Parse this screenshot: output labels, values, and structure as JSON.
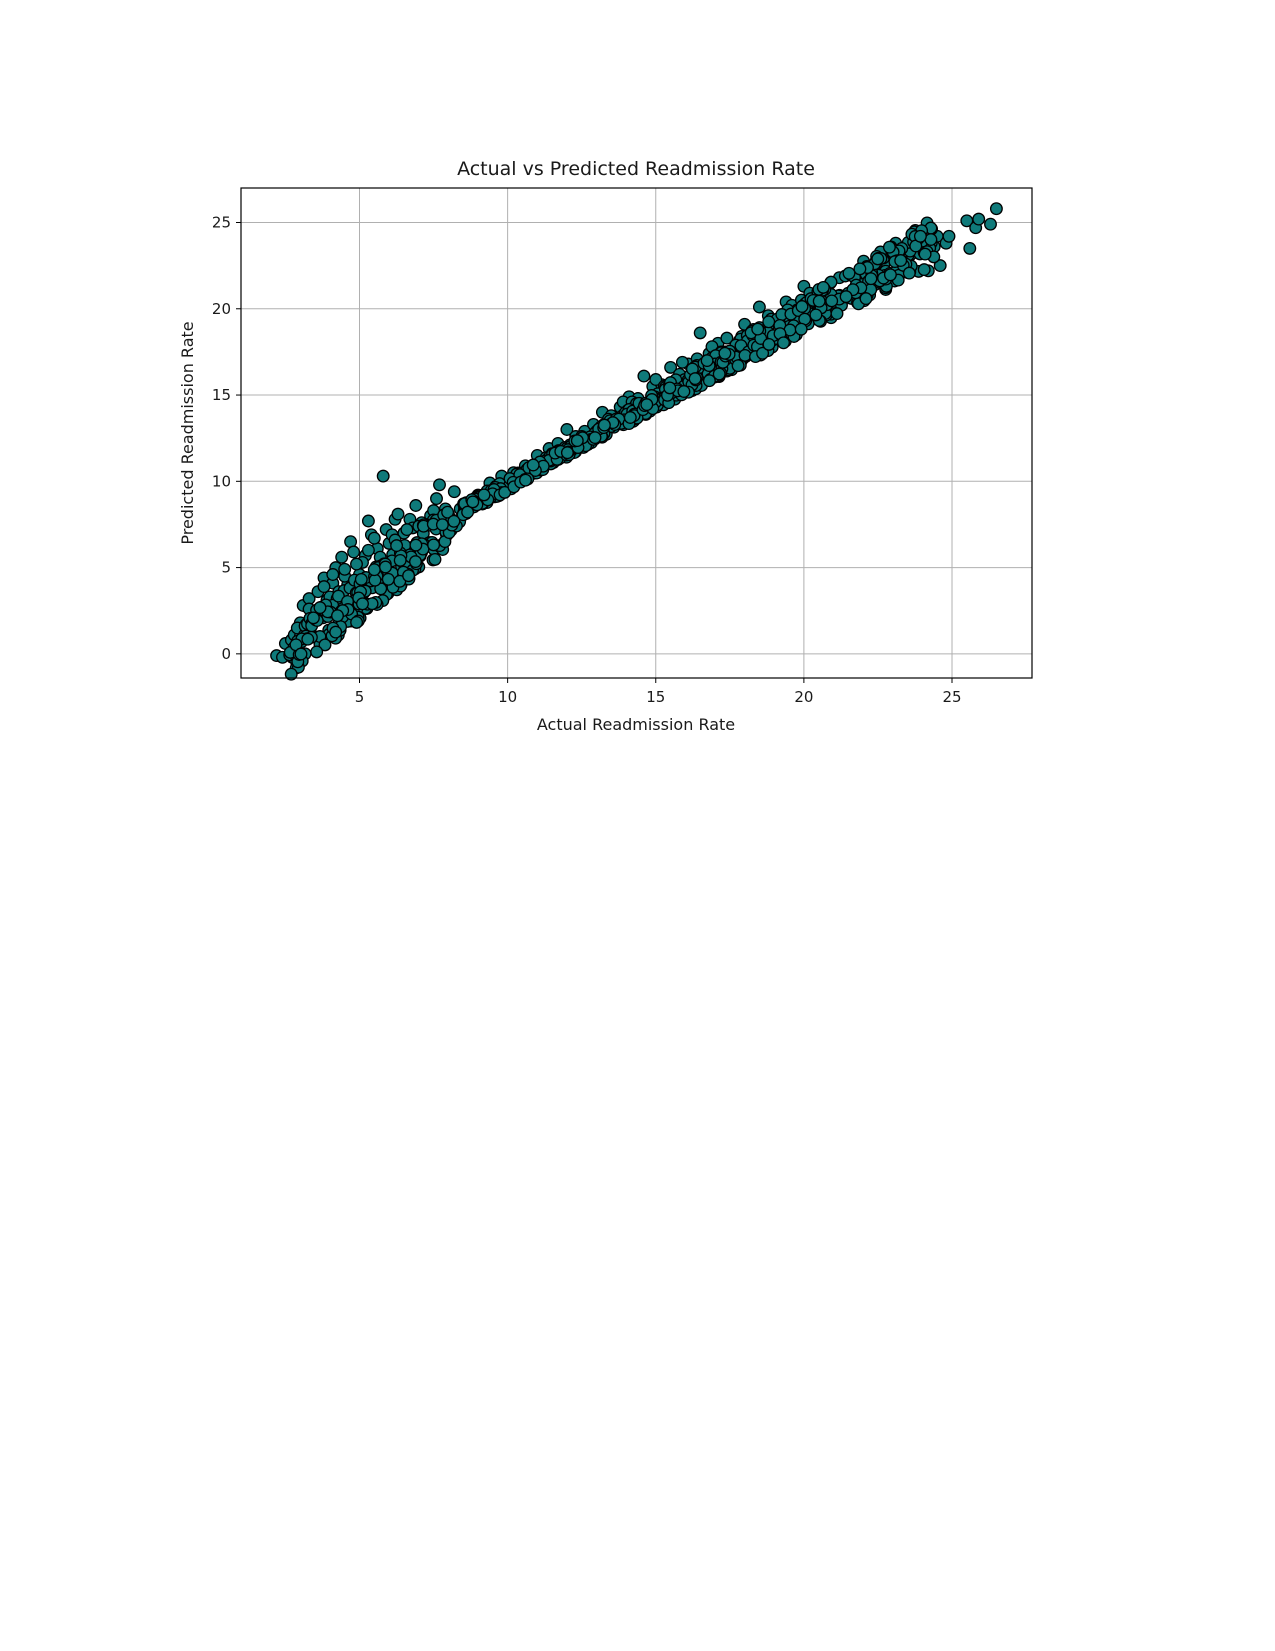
{
  "chart_data": {
    "type": "scatter",
    "title": "Actual vs Predicted Readmission Rate",
    "xlabel": "Actual Readmission Rate",
    "ylabel": "Predicted Readmission Rate",
    "xlim": [
      1.0,
      27.7
    ],
    "ylim": [
      -1.4,
      27.0
    ],
    "xticks": [
      5,
      10,
      15,
      20,
      25
    ],
    "yticks": [
      0,
      5,
      10,
      15,
      20,
      25
    ],
    "xtick_labels": [
      "5",
      "10",
      "15",
      "20",
      "25"
    ],
    "ytick_labels": [
      "0",
      "5",
      "10",
      "15",
      "20",
      "25"
    ],
    "grid": true,
    "marker_face_color": "#0f7a7a",
    "marker_edge_color": "#000000",
    "series": [
      {
        "values": [
          [
            2.2,
            -0.1
          ],
          [
            2.4,
            -0.2
          ],
          [
            2.5,
            0.6
          ],
          [
            2.7,
            0.8
          ],
          [
            2.8,
            1.1
          ],
          [
            3.0,
            1.0
          ],
          [
            3.0,
            1.8
          ],
          [
            3.2,
            1.7
          ],
          [
            3.1,
            2.8
          ],
          [
            3.3,
            3.2
          ],
          [
            3.5,
            2.3
          ],
          [
            3.6,
            3.6
          ],
          [
            3.8,
            4.4
          ],
          [
            3.9,
            3.1
          ],
          [
            4.1,
            4.1
          ],
          [
            4.2,
            5.0
          ],
          [
            4.4,
            5.6
          ],
          [
            4.3,
            3.6
          ],
          [
            4.6,
            4.0
          ],
          [
            4.7,
            6.5
          ],
          [
            4.8,
            5.9
          ],
          [
            5.0,
            4.6
          ],
          [
            5.2,
            5.7
          ],
          [
            5.3,
            7.7
          ],
          [
            5.4,
            6.9
          ],
          [
            5.6,
            6.1
          ],
          [
            5.8,
            10.3
          ],
          [
            5.9,
            7.2
          ],
          [
            6.0,
            6.4
          ],
          [
            6.2,
            7.8
          ],
          [
            6.3,
            8.1
          ],
          [
            6.5,
            7.0
          ],
          [
            6.7,
            7.8
          ],
          [
            6.9,
            8.6
          ],
          [
            7.1,
            7.6
          ],
          [
            7.4,
            8.0
          ],
          [
            7.6,
            9.0
          ],
          [
            7.7,
            9.8
          ],
          [
            7.9,
            8.4
          ],
          [
            8.2,
            9.4
          ],
          [
            8.6,
            8.7
          ],
          [
            9.0,
            9.2
          ],
          [
            9.4,
            9.9
          ],
          [
            9.8,
            10.3
          ],
          [
            10.2,
            10.5
          ],
          [
            10.6,
            10.9
          ],
          [
            11.0,
            11.5
          ],
          [
            11.4,
            11.9
          ],
          [
            11.7,
            12.2
          ],
          [
            12.0,
            13.0
          ],
          [
            12.3,
            12.6
          ],
          [
            12.6,
            12.9
          ],
          [
            12.9,
            13.3
          ],
          [
            13.2,
            14.0
          ],
          [
            13.5,
            13.8
          ],
          [
            13.8,
            14.3
          ],
          [
            14.1,
            14.9
          ],
          [
            14.4,
            14.8
          ],
          [
            14.6,
            16.1
          ],
          [
            14.9,
            15.5
          ],
          [
            15.2,
            15.6
          ],
          [
            15.5,
            16.6
          ],
          [
            15.8,
            16.2
          ],
          [
            16.1,
            16.8
          ],
          [
            16.4,
            17.1
          ],
          [
            16.5,
            18.6
          ],
          [
            16.8,
            17.4
          ],
          [
            17.1,
            18.0
          ],
          [
            17.4,
            18.3
          ],
          [
            17.7,
            17.7
          ],
          [
            18.0,
            19.1
          ],
          [
            18.3,
            18.8
          ],
          [
            18.5,
            20.1
          ],
          [
            18.8,
            19.6
          ],
          [
            19.1,
            19.2
          ],
          [
            19.4,
            20.4
          ],
          [
            19.7,
            19.9
          ],
          [
            20.0,
            21.3
          ],
          [
            20.3,
            20.7
          ],
          [
            20.6,
            20.1
          ],
          [
            20.9,
            21.5
          ],
          [
            21.2,
            21.8
          ],
          [
            21.5,
            20.9
          ],
          [
            21.8,
            21.6
          ],
          [
            22.1,
            22.0
          ],
          [
            22.4,
            21.4
          ],
          [
            22.7,
            22.6
          ],
          [
            23.0,
            23.2
          ],
          [
            23.3,
            22.9
          ],
          [
            23.6,
            23.5
          ],
          [
            24.0,
            23.8
          ],
          [
            24.2,
            22.2
          ],
          [
            24.3,
            23.3
          ],
          [
            24.4,
            23.6
          ],
          [
            24.5,
            24.2
          ],
          [
            24.6,
            22.5
          ],
          [
            24.8,
            23.8
          ],
          [
            24.9,
            24.2
          ],
          [
            25.5,
            25.1
          ],
          [
            25.6,
            23.5
          ],
          [
            25.8,
            24.7
          ],
          [
            25.9,
            25.2
          ],
          [
            26.3,
            24.9
          ],
          [
            26.5,
            25.8
          ],
          [
            3.4,
            2.0
          ],
          [
            3.7,
            2.7
          ],
          [
            4.0,
            3.3
          ],
          [
            4.5,
            4.5
          ],
          [
            5.1,
            5.3
          ],
          [
            5.5,
            6.7
          ],
          [
            5.7,
            5.6
          ],
          [
            6.1,
            6.9
          ],
          [
            6.4,
            6.0
          ],
          [
            6.8,
            7.3
          ],
          [
            7.3,
            7.5
          ],
          [
            7.8,
            7.8
          ],
          [
            8.4,
            8.4
          ],
          [
            9.2,
            9.0
          ],
          [
            10.4,
            10.4
          ],
          [
            11.2,
            11.1
          ],
          [
            12.1,
            12.0
          ],
          [
            13.0,
            12.9
          ],
          [
            13.9,
            14.6
          ],
          [
            14.8,
            14.6
          ],
          [
            15.6,
            15.5
          ],
          [
            16.3,
            16.1
          ],
          [
            17.0,
            17.5
          ],
          [
            17.6,
            16.8
          ],
          [
            18.2,
            17.9
          ],
          [
            18.7,
            18.1
          ],
          [
            19.3,
            18.6
          ],
          [
            19.9,
            19.1
          ],
          [
            20.5,
            19.7
          ],
          [
            21.0,
            20.3
          ],
          [
            21.6,
            20.6
          ],
          [
            22.2,
            21.3
          ],
          [
            22.8,
            21.7
          ],
          [
            23.4,
            22.3
          ],
          [
            23.1,
            23.8
          ],
          [
            21.4,
            21.9
          ],
          [
            20.2,
            20.9
          ],
          [
            19.6,
            20.2
          ],
          [
            18.9,
            19.4
          ],
          [
            17.9,
            18.4
          ],
          [
            16.9,
            17.8
          ],
          [
            15.9,
            16.9
          ],
          [
            15.0,
            15.9
          ],
          [
            14.2,
            14.6
          ],
          [
            13.4,
            13.6
          ],
          [
            12.5,
            12.6
          ],
          [
            11.5,
            11.6
          ],
          [
            10.8,
            10.7
          ],
          [
            9.6,
            9.7
          ],
          [
            8.8,
            8.9
          ],
          [
            8.0,
            8.1
          ],
          [
            7.5,
            8.3
          ],
          [
            7.0,
            7.4
          ],
          [
            6.6,
            7.2
          ],
          [
            6.2,
            6.6
          ],
          [
            5.3,
            6.0
          ],
          [
            4.9,
            5.2
          ],
          [
            4.5,
            4.9
          ],
          [
            4.1,
            4.6
          ],
          [
            3.8,
            3.9
          ],
          [
            3.3,
            2.6
          ],
          [
            2.9,
            1.5
          ]
        ]
      }
    ]
  }
}
